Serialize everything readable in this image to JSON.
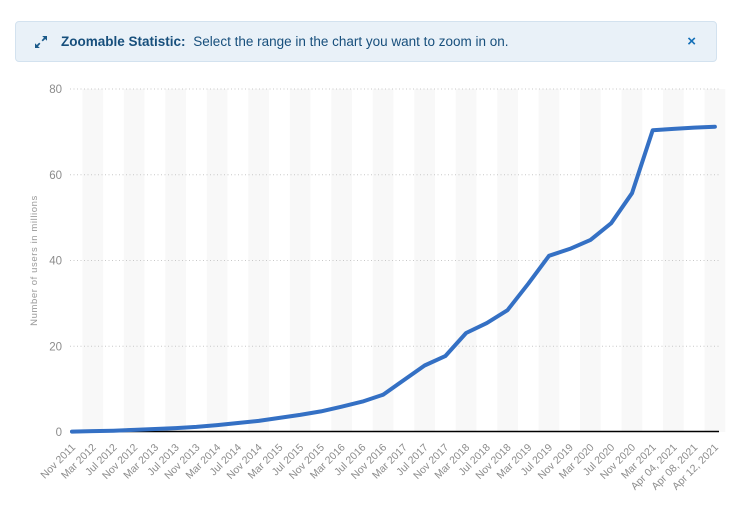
{
  "banner": {
    "icon": "zoom-expand-icon",
    "title": "Zoomable Statistic:",
    "message": "Select the range in the chart you want to zoom in on.",
    "close_label": "×"
  },
  "colors": {
    "line": "#3470c4",
    "banner_bg": "#e9f1f8",
    "banner_border": "#d3e2ef",
    "banner_text": "#174f7c",
    "close_icon": "#1470b8",
    "grid_dots": "#c8c8c8",
    "axis_line": "#000000",
    "tick_text": "#8c8c8c",
    "axis_title_text": "#999999",
    "stripe": "#f8f8f8",
    "plot_bg": "#ffffff"
  },
  "chart_data": {
    "type": "line",
    "title": "",
    "xlabel": "",
    "ylabel": "Number of users in millions",
    "ylim": [
      0,
      80
    ],
    "yticks": [
      0,
      20,
      40,
      60,
      80
    ],
    "grid": "horizontal-dotted",
    "legend_position": "none",
    "categories": [
      "Nov 2011",
      "Mar 2012",
      "Jul 2012",
      "Nov 2012",
      "Mar 2013",
      "Jul 2013",
      "Nov 2013",
      "Mar 2014",
      "Jul 2014",
      "Nov 2014",
      "Mar 2015",
      "Jul 2015",
      "Nov 2015",
      "Mar 2016",
      "Jul 2016",
      "Nov 2016",
      "Mar 2017",
      "Jul 2017",
      "Nov 2017",
      "Mar 2018",
      "Jul 2018",
      "Nov 2018",
      "Mar 2019",
      "Jul 2019",
      "Nov 2019",
      "Mar 2020",
      "Jul 2020",
      "Nov 2020",
      "Mar 2021",
      "Apr 04, 2021",
      "Apr 08, 2021",
      "Apr 12, 2021"
    ],
    "series": [
      {
        "name": "Number of users in millions",
        "values": [
          0.1,
          0.2,
          0.3,
          0.5,
          0.7,
          0.9,
          1.2,
          1.6,
          2.1,
          2.6,
          3.3,
          4.0,
          4.8,
          5.9,
          7.1,
          8.7,
          12.1,
          15.5,
          17.7,
          23.1,
          25.4,
          28.4,
          34.6,
          41.1,
          42.7,
          44.8,
          48.7,
          55.7,
          70.4,
          70.7,
          71.0,
          71.2
        ]
      }
    ]
  }
}
